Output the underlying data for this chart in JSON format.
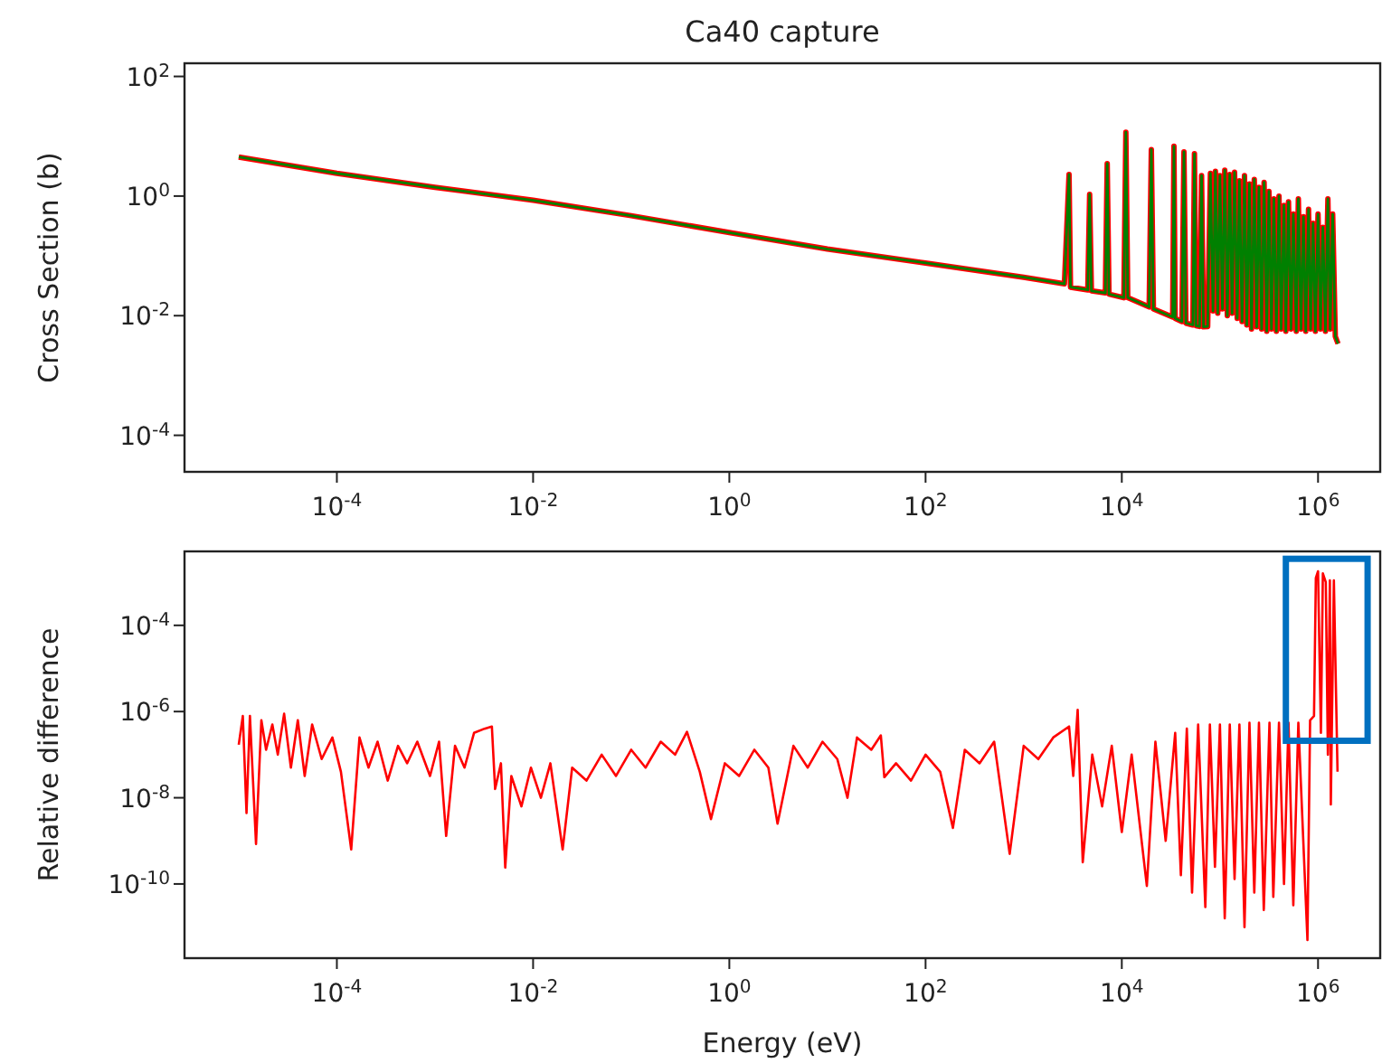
{
  "chart_data": [
    {
      "type": "line",
      "title": "Ca40 capture",
      "ylabel": "Cross Section (b)",
      "log": "xy",
      "xlim": [
        2.8e-06,
        4300000.0
      ],
      "ylim": [
        2.45e-05,
        166
      ],
      "xticks": [
        {
          "value": 0.0001,
          "label": "10$^{-4}$"
        },
        {
          "value": 0.01,
          "label": "10$^{-2}$"
        },
        {
          "value": 1,
          "label": "10$^{0}$"
        },
        {
          "value": 100,
          "label": "10$^{2}$"
        },
        {
          "value": 10000.0,
          "label": "10$^{4}$"
        },
        {
          "value": 1000000.0,
          "label": "10$^{6}$"
        }
      ],
      "yticks": [
        {
          "value": 0.0001,
          "label": "10$^{-4}$"
        },
        {
          "value": 0.01,
          "label": "10$^{-2}$"
        },
        {
          "value": 1,
          "label": "10$^{0}$"
        },
        {
          "value": 100,
          "label": "10$^{2}$"
        }
      ],
      "x": [
        1e-05,
        0.0001,
        0.001,
        0.01,
        0.1,
        1,
        10,
        100,
        1000,
        2600,
        2900,
        3000,
        4500,
        4700,
        4900,
        6800,
        7100,
        7400,
        10500,
        11000,
        11500,
        19000,
        20000,
        21000,
        33000,
        34000,
        35000,
        41000,
        43000,
        45000,
        53000,
        55000,
        57000,
        62000,
        65000,
        68000,
        75000,
        80000,
        85000,
        90000,
        95000,
        100000,
        106000,
        112000,
        119000,
        126000,
        133000,
        141000,
        150000,
        158000,
        168000,
        178000,
        188000,
        200000,
        210000,
        224000,
        237000,
        250000,
        266000,
        282000,
        300000,
        316000,
        335000,
        355000,
        376000,
        400000,
        420000,
        450000,
        470000,
        500000,
        530000,
        560000,
        600000,
        630000,
        670000,
        710000,
        750000,
        800000,
        840000,
        890000,
        940000,
        1000000,
        1060000,
        1120000,
        1190000,
        1260000,
        1330000,
        1410000,
        1500000,
        1600000
      ],
      "series": [
        {
          "color": "#ff0000",
          "values": [
            4.5,
            2.4,
            1.4,
            0.85,
            0.47,
            0.245,
            0.13,
            0.076,
            0.044,
            0.034,
            2.3,
            0.03,
            0.027,
            1.07,
            0.026,
            0.024,
            3.5,
            0.023,
            0.02,
            11.7,
            0.02,
            0.014,
            6.0,
            0.013,
            0.0095,
            6.8,
            0.009,
            0.008,
            5.5,
            0.0075,
            0.007,
            5.1,
            0.0068,
            0.0066,
            2.2,
            0.0065,
            0.0066,
            2.4,
            0.012,
            2.6,
            0.011,
            2.2,
            0.013,
            2.7,
            0.01,
            2.3,
            0.011,
            2.5,
            0.009,
            1.8,
            0.008,
            2.2,
            0.007,
            1.6,
            0.006,
            1.9,
            0.0065,
            1.4,
            0.006,
            1.7,
            0.0055,
            1.2,
            0.006,
            0.9,
            0.0055,
            1.0,
            0.006,
            0.7,
            0.0055,
            0.8,
            0.006,
            0.5,
            0.0055,
            0.9,
            0.006,
            0.45,
            0.0055,
            0.6,
            0.006,
            0.35,
            0.0055,
            0.5,
            0.006,
            0.3,
            0.0055,
            0.9,
            0.006,
            0.5,
            0.0045,
            0.0034
          ]
        },
        {
          "color": "#008000",
          "values": [
            4.5,
            2.4,
            1.4,
            0.85,
            0.47,
            0.245,
            0.13,
            0.076,
            0.044,
            0.034,
            2.3,
            0.03,
            0.027,
            1.07,
            0.026,
            0.024,
            3.5,
            0.023,
            0.02,
            11.7,
            0.02,
            0.014,
            6.0,
            0.013,
            0.0095,
            6.8,
            0.009,
            0.008,
            5.5,
            0.0075,
            0.007,
            5.1,
            0.0068,
            0.0066,
            2.2,
            0.0065,
            0.0066,
            2.4,
            0.012,
            2.6,
            0.011,
            2.2,
            0.013,
            2.7,
            0.01,
            2.3,
            0.011,
            2.5,
            0.009,
            1.8,
            0.008,
            2.2,
            0.007,
            1.6,
            0.006,
            1.9,
            0.0065,
            1.4,
            0.006,
            1.7,
            0.0055,
            1.2,
            0.006,
            0.9,
            0.0055,
            1.0,
            0.006,
            0.7,
            0.0055,
            0.8,
            0.006,
            0.5,
            0.0055,
            0.9,
            0.006,
            0.45,
            0.0055,
            0.6,
            0.006,
            0.35,
            0.0055,
            0.5,
            0.006,
            0.3,
            0.0055,
            0.9,
            0.006,
            0.5,
            0.0045,
            0.0034
          ]
        }
      ]
    },
    {
      "type": "line",
      "xlabel": "Energy (eV)",
      "ylabel": "Relative difference",
      "log": "xy",
      "xlim": [
        2.8e-06,
        4300000.0
      ],
      "ylim": [
        1.9e-12,
        0.0052
      ],
      "xticks": [
        {
          "value": 0.0001,
          "label": "10$^{-4}$"
        },
        {
          "value": 0.01,
          "label": "10$^{-2}$"
        },
        {
          "value": 1,
          "label": "10$^{0}$"
        },
        {
          "value": 100,
          "label": "10$^{2}$"
        },
        {
          "value": 10000.0,
          "label": "10$^{4}$"
        },
        {
          "value": 1000000.0,
          "label": "10$^{6}$"
        }
      ],
      "yticks": [
        {
          "value": 1e-10,
          "label": "10$^{-10}$"
        },
        {
          "value": 1e-08,
          "label": "10$^{-8}$"
        },
        {
          "value": 1e-06,
          "label": "10$^{-6}$"
        },
        {
          "value": 0.0001,
          "label": "10$^{-4}$"
        }
      ],
      "x": [
        1e-05,
        1.1e-05,
        1.2e-05,
        1.3e-05,
        1.5e-05,
        1.7e-05,
        1.9e-05,
        2.2e-05,
        2.5e-05,
        2.9e-05,
        3.4e-05,
        4e-05,
        4.7e-05,
        5.6e-05,
        7e-05,
        9e-05,
        0.00011,
        0.00014,
        0.00017,
        0.00021,
        0.00026,
        0.00033,
        0.00042,
        0.00052,
        0.00066,
        0.00089,
        0.0011,
        0.0013,
        0.0016,
        0.002,
        0.0025,
        0.0032,
        0.0038,
        0.0041,
        0.0047,
        0.0052,
        0.006,
        0.0076,
        0.0095,
        0.012,
        0.015,
        0.02,
        0.025,
        0.035,
        0.05,
        0.07,
        0.1,
        0.14,
        0.2,
        0.28,
        0.37,
        0.5,
        0.65,
        0.9,
        1.26,
        1.8,
        2.5,
        3.1,
        4.5,
        6.3,
        8.9,
        12.6,
        16,
        20,
        28,
        35,
        38,
        50,
        71,
        100,
        141,
        190,
        251,
        355,
        500,
        720,
        1000,
        1410,
        2000,
        2900,
        3200,
        3550,
        4000,
        5000,
        6300,
        7900,
        10000,
        12600,
        18000,
        22000,
        28000,
        35000,
        40000,
        46000,
        52000,
        60000,
        71000,
        79000,
        89000,
        100000,
        112000,
        126000,
        141000,
        158000,
        178000,
        200000,
        224000,
        250000,
        280000,
        320000,
        350000,
        400000,
        450000,
        500000,
        560000,
        630000,
        780000,
        830000,
        910000,
        950000,
        1000000,
        1070000,
        1120000,
        1200000,
        1260000,
        1320000,
        1350000,
        1450000,
        1580000
      ],
      "series": [
        {
          "color": "#ff0000",
          "values": [
            1.7e-07,
            7.9e-07,
            4.4e-09,
            7.9e-07,
            8.5e-10,
            6.3e-07,
            1.3e-07,
            5e-07,
            1e-07,
            8.9e-07,
            5e-08,
            6.3e-07,
            3.2e-08,
            5e-07,
            7.9e-08,
            2.5e-07,
            4e-08,
            6.3e-10,
            2.5e-07,
            5e-08,
            2e-07,
            2.5e-08,
            1.6e-07,
            6.3e-08,
            2e-07,
            3.2e-08,
            2e-07,
            1.3e-09,
            1.6e-07,
            5e-08,
            3.2e-07,
            4e-07,
            4.5e-07,
            1.6e-08,
            6.3e-08,
            2.4e-10,
            3.2e-08,
            6.3e-09,
            5e-08,
            1e-08,
            6.3e-08,
            6.3e-10,
            5e-08,
            2.5e-08,
            1e-07,
            3.2e-08,
            1.3e-07,
            5e-08,
            2e-07,
            1e-07,
            3.4e-07,
            4e-08,
            3.2e-09,
            6.3e-08,
            3.2e-08,
            1.3e-07,
            5e-08,
            2.5e-09,
            1.6e-07,
            5e-08,
            2e-07,
            7.9e-08,
            1e-08,
            2.5e-07,
            1.3e-07,
            2.8e-07,
            3e-08,
            6.3e-08,
            2.5e-08,
            1e-07,
            4e-08,
            2e-09,
            1.3e-07,
            6.3e-08,
            2e-07,
            5e-10,
            1.6e-07,
            7.9e-08,
            2.5e-07,
            4.5e-07,
            3.2e-08,
            1.1e-06,
            3.2e-10,
            1e-07,
            6.3e-09,
            1.6e-07,
            1.6e-09,
            1e-07,
            9e-11,
            2e-07,
            1e-09,
            3.2e-07,
            1.6e-10,
            4e-07,
            6.3e-11,
            5e-07,
            2.9e-11,
            5e-07,
            2.5e-10,
            5e-07,
            1.6e-11,
            5e-07,
            1.3e-10,
            5e-07,
            1e-11,
            5.5e-07,
            6.3e-11,
            5.5e-07,
            2.5e-11,
            5.5e-07,
            5e-11,
            5.5e-07,
            1e-10,
            5.5e-07,
            3.2e-11,
            5.5e-07,
            5e-12,
            6.3e-07,
            7.9e-07,
            0.00126,
            0.0018,
            3.2e-07,
            0.0016,
            0.001,
            1e-07,
            0.0011,
            7e-09,
            0.0011,
            4e-08
          ]
        }
      ]
    }
  ]
}
